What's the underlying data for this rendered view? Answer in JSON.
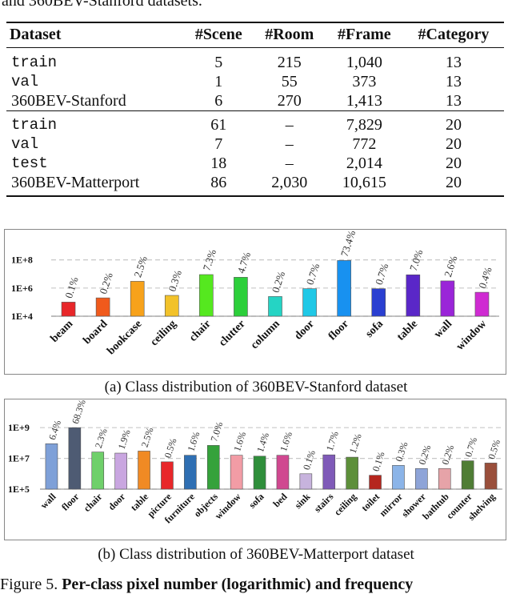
{
  "top_text": "and 360BEV-Stanford datasets.",
  "table": {
    "headers": [
      "Dataset",
      "#Scene",
      "#Room",
      "#Frame",
      "#Category"
    ],
    "rows": [
      [
        "train",
        "5",
        "215",
        "1,040",
        "13"
      ],
      [
        "val",
        "1",
        "55",
        "373",
        "13"
      ],
      [
        "360BEV-Stanford",
        "6",
        "270",
        "1,413",
        "13"
      ],
      [
        "train",
        "61",
        "–",
        "7,829",
        "20"
      ],
      [
        "val",
        "7",
        "–",
        "772",
        "20"
      ],
      [
        "test",
        "18",
        "–",
        "2,014",
        "20"
      ],
      [
        "360BEV-Matterport",
        "86",
        "2,030",
        "10,615",
        "20"
      ]
    ]
  },
  "chart_data": [
    {
      "type": "bar",
      "title": "(a) Class distribution of 360BEV-Stanford dataset",
      "yscale": "log",
      "ylim_exponent": [
        4,
        9
      ],
      "ytick_labels": [
        "1E+4",
        "1E+6",
        "1E+8"
      ],
      "categories": [
        "beam",
        "board",
        "bookcase",
        "ceiling",
        "chair",
        "clutter",
        "column",
        "door",
        "floor",
        "sofa",
        "table",
        "wall",
        "window"
      ],
      "values": [
        100000,
        200000,
        3000000,
        300000,
        9000000,
        5800000,
        250000,
        900000,
        90000000,
        900000,
        8700000,
        3200000,
        500000
      ],
      "percent_labels": [
        "0.1%",
        "0.2%",
        "2.5%",
        "0.3%",
        "7.3%",
        "4.7%",
        "0.2%",
        "0.7%",
        "73.4%",
        "0.7%",
        "7.0%",
        "2.6%",
        "0.4%"
      ],
      "colors": [
        "#e8272a",
        "#f05a1c",
        "#f7a21b",
        "#f2c22a",
        "#55e81f",
        "#2ccf3a",
        "#25d4c4",
        "#1fc8e6",
        "#1891f0",
        "#2a3fd1",
        "#5a27c8",
        "#9a25d8",
        "#cf2bd2"
      ]
    },
    {
      "type": "bar",
      "title": "(b) Class distribution of 360BEV-Matterport dataset",
      "yscale": "log",
      "ylim_exponent": [
        5,
        10
      ],
      "ytick_labels": [
        "1E+5",
        "1E+7",
        "1E+9"
      ],
      "categories": [
        "wall",
        "floor",
        "chair",
        "door",
        "table",
        "picture",
        "furniture",
        "objects",
        "window",
        "sofa",
        "bed",
        "sink",
        "stairs",
        "ceiling",
        "toilet",
        "mirror",
        "shower",
        "bathtub",
        "counter",
        "shelving"
      ],
      "values": [
        90000000,
        1000000000,
        26000000,
        22000000,
        30000000,
        6000000,
        16000000,
        70000000,
        16000000,
        14000000,
        16000000,
        1000000,
        17000000,
        12000000,
        800000,
        3500000,
        2200000,
        2200000,
        7000000,
        5000000
      ],
      "percent_labels": [
        "6.4%",
        "68.3%",
        "2.3%",
        "1.9%",
        "2.5%",
        "0.5%",
        "1.6%",
        "7.0%",
        "1.6%",
        "1.4%",
        "1.6%",
        "0.1%",
        "1.7%",
        "1.2%",
        "0.1%",
        "0.3%",
        "0.2%",
        "0.2%",
        "0.7%",
        "0.5%"
      ],
      "colors": [
        "#7ea0d8",
        "#4e5b73",
        "#6fd06a",
        "#c9a6e0",
        "#f08a24",
        "#e8272a",
        "#2f6fb3",
        "#35a23b",
        "#f29ca5",
        "#2f8f3b",
        "#d04890",
        "#c7b3dd",
        "#7f5ab8",
        "#5d8f3a",
        "#b5261e",
        "#8bb4e8",
        "#8ea4d8",
        "#e6a3a8",
        "#4f7d35",
        "#9a4f3b"
      ]
    }
  ],
  "figure_caption": {
    "prefix": "Figure 5.",
    "bold": "Per-class pixel number (logarithmic) and frequency"
  }
}
